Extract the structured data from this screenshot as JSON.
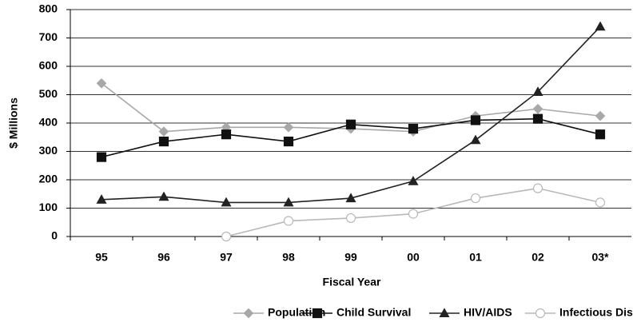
{
  "chart_data": {
    "type": "line",
    "xlabel": "Fiscal Year",
    "ylabel": "$ Millions",
    "categories": [
      "95",
      "96",
      "97",
      "98",
      "99",
      "00",
      "01",
      "02",
      "03*"
    ],
    "series": [
      {
        "name": "Population",
        "color": "#a8a8a8",
        "marker": "diamond",
        "values": [
          540,
          370,
          385,
          385,
          380,
          370,
          425,
          450,
          425
        ]
      },
      {
        "name": "Child Survival",
        "color": "#111111",
        "marker": "square",
        "values": [
          280,
          335,
          360,
          335,
          395,
          380,
          410,
          415,
          360
        ]
      },
      {
        "name": "HIV/AIDS",
        "color": "#222222",
        "marker": "triangle",
        "values": [
          130,
          140,
          120,
          120,
          135,
          195,
          340,
          510,
          740
        ]
      },
      {
        "name": "Infectious Diseases",
        "color": "#b8b8b8",
        "marker": "circle",
        "values": [
          null,
          null,
          0,
          55,
          65,
          80,
          135,
          170,
          120
        ]
      }
    ],
    "ylim": [
      0,
      800
    ],
    "yticks": [
      0,
      100,
      200,
      300,
      400,
      500,
      600,
      700,
      800
    ],
    "grid": true,
    "legend": "bottom"
  }
}
